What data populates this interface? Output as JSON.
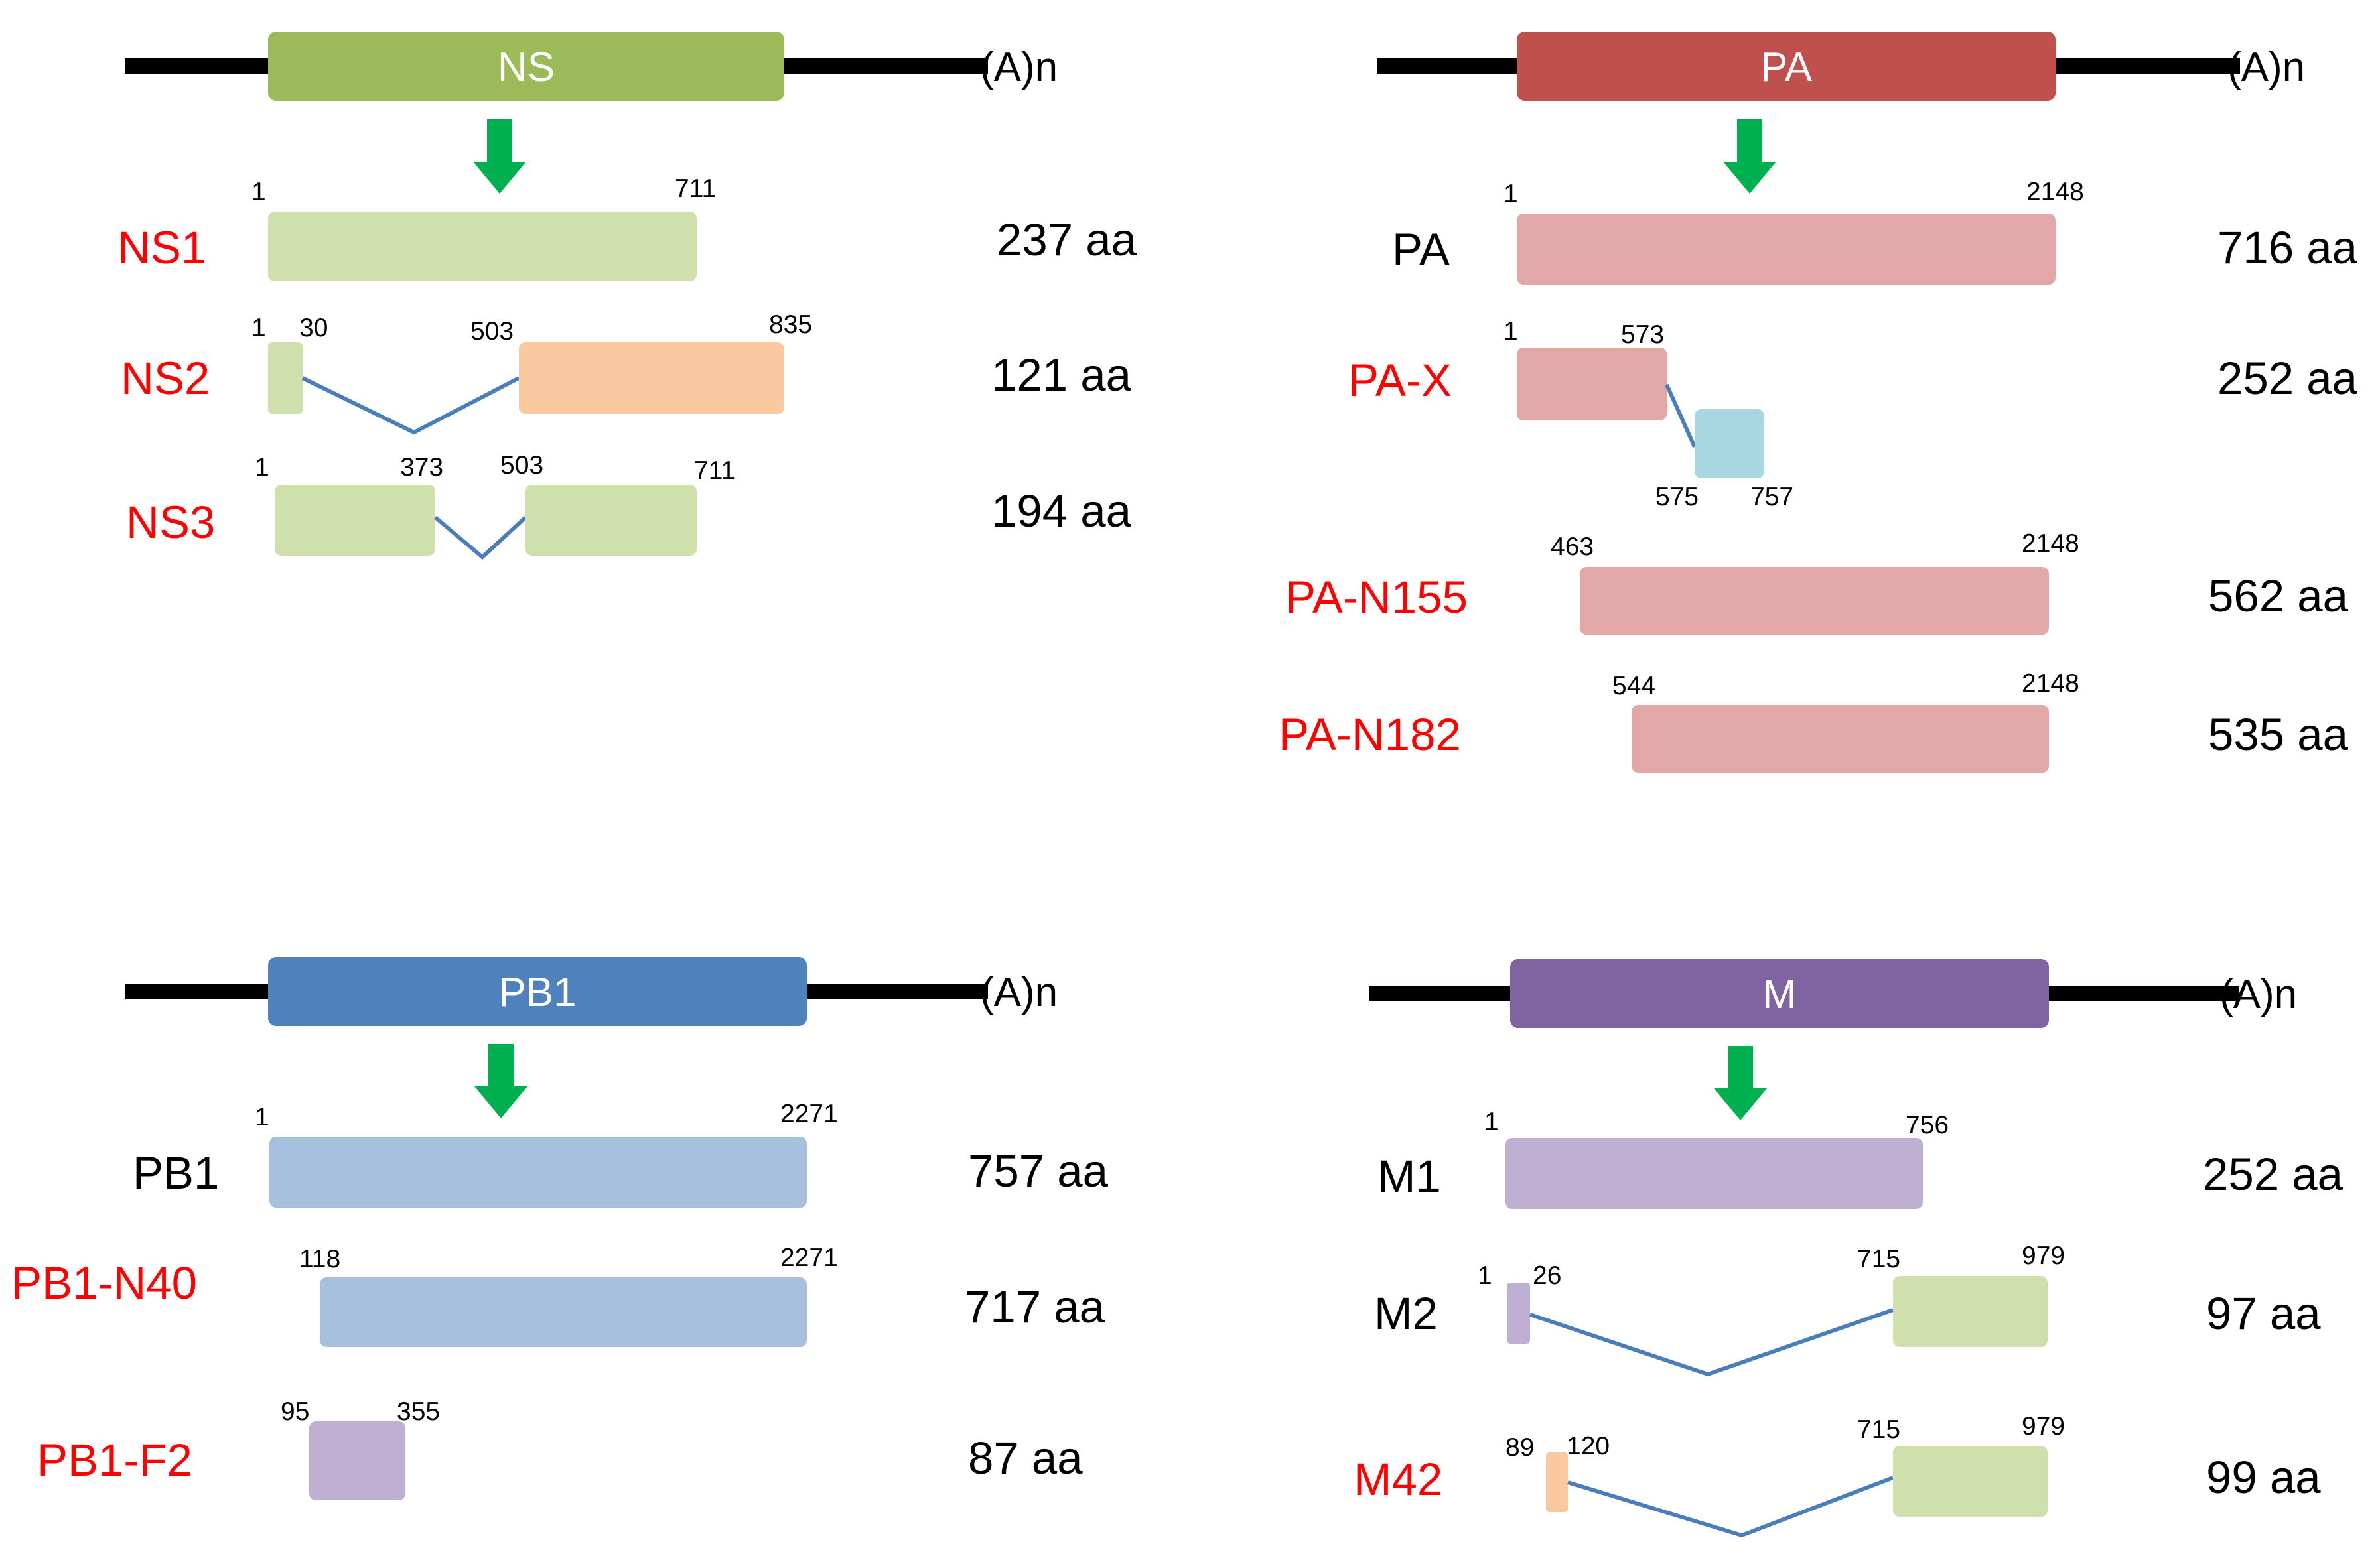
{
  "colors": {
    "ns": "#9bbb59",
    "ns_light": "#cfe0ad",
    "ns_orange": "#fac9a0",
    "pa": "#c0504d",
    "pa_light": "#e2a8a7",
    "pa_x_blue": "#a8d7e2",
    "pb1": "#4f81bd",
    "pb1_light": "#a7c0de",
    "pb1_purple": "#bfb0d3",
    "m": "#8064a2",
    "m_light": "#bfb0d3",
    "m_green": "#cfe0ad",
    "m_orange": "#fac9a0",
    "arrow": "#00b050",
    "splice": "#4a7ebb",
    "red_label": "#ff0000"
  },
  "poly_a": "(A)n",
  "panels": {
    "ns": {
      "segment": "NS",
      "products": [
        {
          "name": "NS1",
          "length": "237 aa",
          "coords": [
            "1",
            "711"
          ]
        },
        {
          "name": "NS2",
          "length": "121 aa",
          "coords": [
            "1",
            "30",
            "503",
            "835"
          ]
        },
        {
          "name": "NS3",
          "length": "194 aa",
          "coords": [
            "1",
            "373",
            "503",
            "711"
          ]
        }
      ]
    },
    "pa": {
      "segment": "PA",
      "products": [
        {
          "name": "PA",
          "length": "716 aa",
          "coords": [
            "1",
            "2148"
          ]
        },
        {
          "name": "PA-X",
          "length": "252 aa",
          "coords": [
            "1",
            "573",
            "575",
            "757"
          ]
        },
        {
          "name": "PA-N155",
          "length": "562 aa",
          "coords": [
            "463",
            "2148"
          ]
        },
        {
          "name": "PA-N182",
          "length": "535 aa",
          "coords": [
            "544",
            "2148"
          ]
        }
      ]
    },
    "pb1": {
      "segment": "PB1",
      "products": [
        {
          "name": "PB1",
          "length": "757 aa",
          "coords": [
            "1",
            "2271"
          ]
        },
        {
          "name": "PB1-N40",
          "length": "717 aa",
          "coords": [
            "118",
            "2271"
          ]
        },
        {
          "name": "PB1-F2",
          "length": "87 aa",
          "coords": [
            "95",
            "355"
          ]
        }
      ]
    },
    "m": {
      "segment": "M",
      "products": [
        {
          "name": "M1",
          "length": "252 aa",
          "coords": [
            "1",
            "756"
          ]
        },
        {
          "name": "M2",
          "length": "97 aa",
          "coords": [
            "1",
            "26",
            "715",
            "979"
          ]
        },
        {
          "name": "M42",
          "length": "99 aa",
          "coords": [
            "89",
            "120",
            "715",
            "979"
          ]
        }
      ]
    }
  }
}
